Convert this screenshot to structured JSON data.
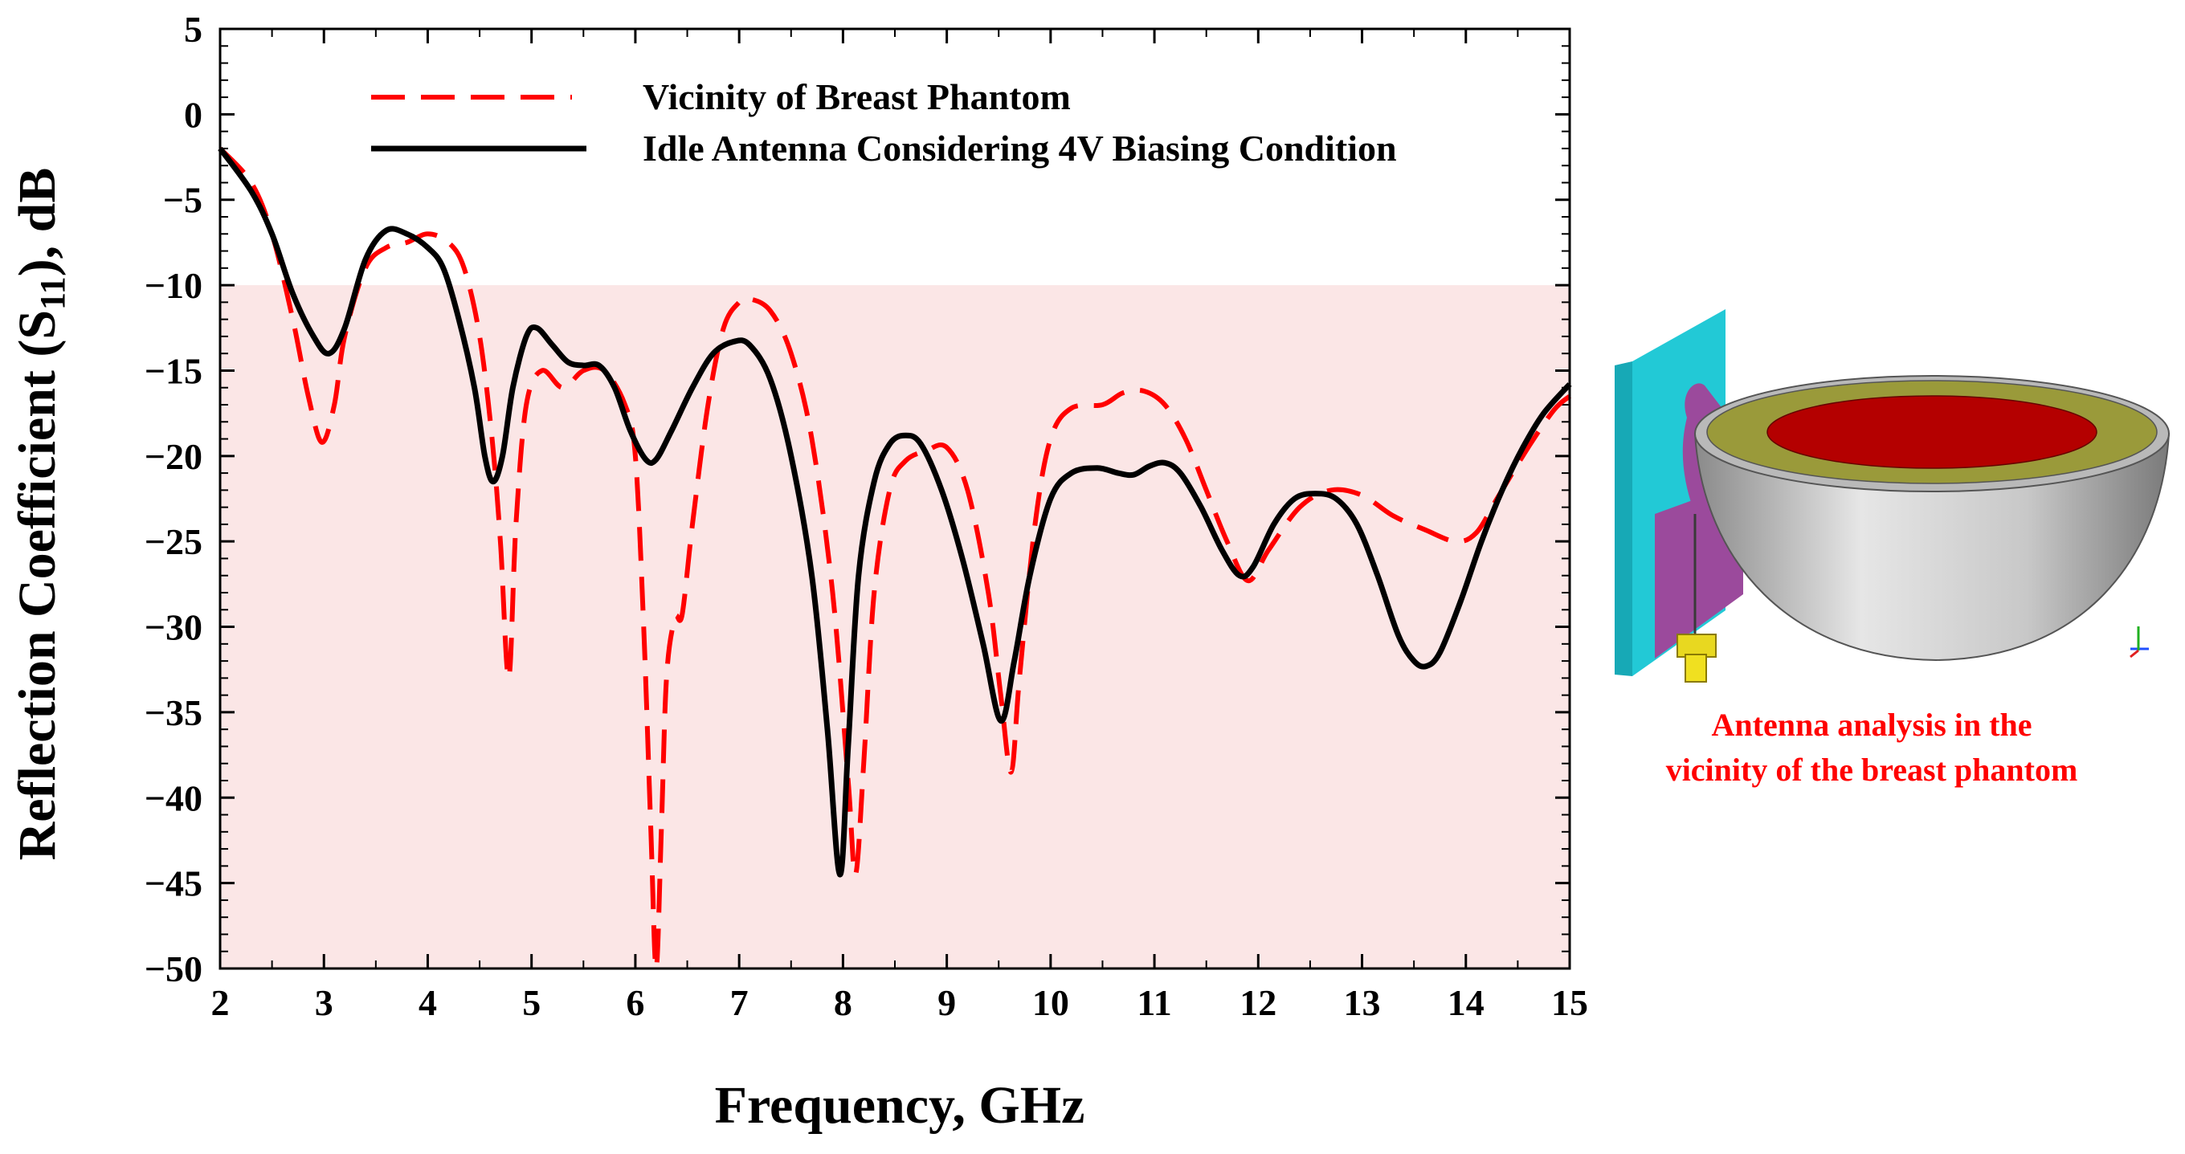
{
  "chart_data": {
    "type": "line",
    "title": "",
    "xlabel": "Frequency, GHz",
    "ylabel_main": "Reflection Coefficient (S",
    "ylabel_sub": "11",
    "ylabel_end": "), dB",
    "xlim": [
      2,
      15
    ],
    "ylim": [
      -50,
      5
    ],
    "x_ticks": [
      2,
      3,
      4,
      5,
      6,
      7,
      8,
      9,
      10,
      11,
      12,
      13,
      14,
      15
    ],
    "y_ticks": [
      5,
      0,
      -5,
      -10,
      -15,
      -20,
      -25,
      -30,
      -35,
      -40,
      -45,
      -50
    ],
    "shaded_region": {
      "from": -50,
      "to": -10,
      "color": "#fbe6e6"
    },
    "legend_position": "top-center",
    "series": [
      {
        "name": "Vicinity of Breast Phantom",
        "color": "#ff0000",
        "style": "dashed",
        "points": [
          [
            2,
            -2
          ],
          [
            2.3,
            -4
          ],
          [
            2.5,
            -7
          ],
          [
            2.7,
            -12
          ],
          [
            2.85,
            -16.5
          ],
          [
            2.98,
            -19.2
          ],
          [
            3.1,
            -17
          ],
          [
            3.2,
            -13
          ],
          [
            3.4,
            -9
          ],
          [
            3.6,
            -7.8
          ],
          [
            3.8,
            -7.5
          ],
          [
            4.0,
            -7
          ],
          [
            4.2,
            -7.5
          ],
          [
            4.35,
            -9
          ],
          [
            4.5,
            -13
          ],
          [
            4.62,
            -19
          ],
          [
            4.7,
            -25
          ],
          [
            4.78,
            -33
          ],
          [
            4.85,
            -24
          ],
          [
            4.95,
            -17
          ],
          [
            5.1,
            -15
          ],
          [
            5.3,
            -16
          ],
          [
            5.5,
            -15
          ],
          [
            5.7,
            -15
          ],
          [
            5.9,
            -17
          ],
          [
            6.0,
            -20
          ],
          [
            6.08,
            -30
          ],
          [
            6.15,
            -42
          ],
          [
            6.2,
            -50
          ],
          [
            6.25,
            -42
          ],
          [
            6.3,
            -33
          ],
          [
            6.38,
            -29.5
          ],
          [
            6.45,
            -29.3
          ],
          [
            6.55,
            -24
          ],
          [
            6.7,
            -17
          ],
          [
            6.85,
            -12.5
          ],
          [
            7.0,
            -11
          ],
          [
            7.1,
            -10.8
          ],
          [
            7.3,
            -11.5
          ],
          [
            7.5,
            -14
          ],
          [
            7.7,
            -19
          ],
          [
            7.9,
            -28
          ],
          [
            8.05,
            -39
          ],
          [
            8.12,
            -44.5
          ],
          [
            8.2,
            -38
          ],
          [
            8.3,
            -28
          ],
          [
            8.45,
            -22
          ],
          [
            8.6,
            -20.3
          ],
          [
            8.8,
            -19.7
          ],
          [
            9.0,
            -19.5
          ],
          [
            9.2,
            -22
          ],
          [
            9.4,
            -28
          ],
          [
            9.52,
            -34
          ],
          [
            9.62,
            -38.5
          ],
          [
            9.7,
            -33
          ],
          [
            9.85,
            -24
          ],
          [
            10.0,
            -19
          ],
          [
            10.2,
            -17.2
          ],
          [
            10.5,
            -17
          ],
          [
            10.7,
            -16.3
          ],
          [
            10.9,
            -16.2
          ],
          [
            11.1,
            -17
          ],
          [
            11.3,
            -19
          ],
          [
            11.5,
            -22
          ],
          [
            11.7,
            -25
          ],
          [
            11.9,
            -27.3
          ],
          [
            12.1,
            -25.5
          ],
          [
            12.4,
            -23
          ],
          [
            12.7,
            -22
          ],
          [
            13.0,
            -22.3
          ],
          [
            13.3,
            -23.5
          ],
          [
            13.6,
            -24.3
          ],
          [
            13.9,
            -25
          ],
          [
            14.1,
            -24.5
          ],
          [
            14.3,
            -22.5
          ],
          [
            14.6,
            -19.5
          ],
          [
            14.85,
            -17.3
          ],
          [
            15.0,
            -16.5
          ]
        ]
      },
      {
        "name": "Idle Antenna Considering 4V Biasing Condition",
        "color": "#000000",
        "style": "solid",
        "points": [
          [
            2,
            -2
          ],
          [
            2.3,
            -4.5
          ],
          [
            2.5,
            -7
          ],
          [
            2.7,
            -10.5
          ],
          [
            2.9,
            -13
          ],
          [
            3.05,
            -14
          ],
          [
            3.2,
            -12.5
          ],
          [
            3.4,
            -8.5
          ],
          [
            3.6,
            -6.8
          ],
          [
            3.8,
            -7
          ],
          [
            4.0,
            -7.8
          ],
          [
            4.15,
            -9
          ],
          [
            4.3,
            -12
          ],
          [
            4.45,
            -16
          ],
          [
            4.55,
            -20
          ],
          [
            4.63,
            -21.5
          ],
          [
            4.72,
            -20
          ],
          [
            4.82,
            -16
          ],
          [
            4.95,
            -13
          ],
          [
            5.05,
            -12.5
          ],
          [
            5.2,
            -13.5
          ],
          [
            5.35,
            -14.5
          ],
          [
            5.5,
            -14.7
          ],
          [
            5.65,
            -14.7
          ],
          [
            5.8,
            -16
          ],
          [
            5.95,
            -18.5
          ],
          [
            6.1,
            -20.2
          ],
          [
            6.2,
            -20.2
          ],
          [
            6.35,
            -18.5
          ],
          [
            6.55,
            -16
          ],
          [
            6.75,
            -14
          ],
          [
            6.95,
            -13.3
          ],
          [
            7.1,
            -13.5
          ],
          [
            7.3,
            -15.5
          ],
          [
            7.5,
            -20
          ],
          [
            7.7,
            -27
          ],
          [
            7.85,
            -36
          ],
          [
            7.97,
            -44.5
          ],
          [
            8.05,
            -37
          ],
          [
            8.15,
            -27
          ],
          [
            8.3,
            -21.5
          ],
          [
            8.45,
            -19.3
          ],
          [
            8.6,
            -18.8
          ],
          [
            8.75,
            -19.3
          ],
          [
            8.95,
            -22
          ],
          [
            9.15,
            -26
          ],
          [
            9.35,
            -31
          ],
          [
            9.52,
            -35.5
          ],
          [
            9.65,
            -32
          ],
          [
            9.8,
            -27
          ],
          [
            10.0,
            -22.5
          ],
          [
            10.2,
            -21
          ],
          [
            10.45,
            -20.7
          ],
          [
            10.65,
            -21
          ],
          [
            10.8,
            -21.1
          ],
          [
            10.95,
            -20.6
          ],
          [
            11.1,
            -20.4
          ],
          [
            11.25,
            -21
          ],
          [
            11.45,
            -23
          ],
          [
            11.65,
            -25.5
          ],
          [
            11.82,
            -27
          ],
          [
            11.95,
            -26.5
          ],
          [
            12.15,
            -24
          ],
          [
            12.35,
            -22.5
          ],
          [
            12.55,
            -22.2
          ],
          [
            12.75,
            -22.5
          ],
          [
            12.95,
            -24
          ],
          [
            13.15,
            -27
          ],
          [
            13.35,
            -30.5
          ],
          [
            13.5,
            -32
          ],
          [
            13.62,
            -32.3
          ],
          [
            13.75,
            -31.5
          ],
          [
            13.95,
            -28.5
          ],
          [
            14.15,
            -25
          ],
          [
            14.35,
            -22
          ],
          [
            14.55,
            -19.5
          ],
          [
            14.75,
            -17.5
          ],
          [
            15.0,
            -15.8
          ]
        ]
      }
    ]
  },
  "caption": {
    "line1": "Antenna analysis in the",
    "line2": "vicinity of the breast phantom",
    "color": "#ff0000"
  },
  "inset_image": {
    "description_icon": "antenna-phantom-3d-model",
    "colors": {
      "substrate": "#22c9d6",
      "patch": "#9b4a9c",
      "connector": "#f0e020",
      "skin": "#c8c8c8",
      "fat": "#9a9a3a",
      "tumor_tissue": "#b40000"
    }
  }
}
